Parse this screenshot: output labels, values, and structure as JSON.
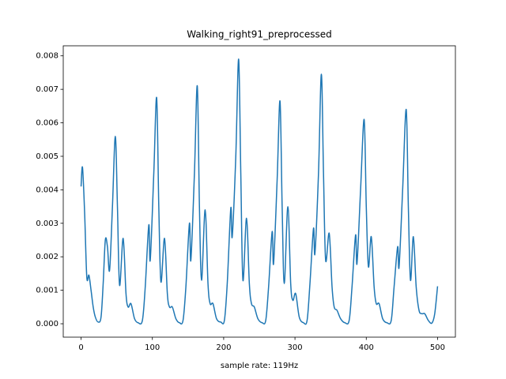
{
  "chart_data": {
    "type": "line",
    "title": "Walking_right91_preprocessed",
    "x_label": "sample rate: 119Hz",
    "xlim": [
      -25,
      525
    ],
    "ylim": [
      -0.0004,
      0.0083
    ],
    "xticks": [
      0,
      100,
      200,
      300,
      400,
      500
    ],
    "yticks": [
      {
        "value": 0,
        "label": "0.000"
      },
      {
        "value": 0.001,
        "label": "0.001"
      },
      {
        "value": 0.002,
        "label": "0.002"
      },
      {
        "value": 0.003,
        "label": "0.003"
      },
      {
        "value": 0.004,
        "label": "0.004"
      },
      {
        "value": 0.005,
        "label": "0.005"
      },
      {
        "value": 0.006,
        "label": "0.006"
      },
      {
        "value": 0.007,
        "label": "0.007"
      },
      {
        "value": 0.008,
        "label": "0.008"
      }
    ],
    "grid": false,
    "color": "#1f77b4",
    "x": [
      0,
      2,
      5,
      8,
      11,
      14,
      17,
      20,
      24,
      28,
      31,
      34,
      37,
      40,
      44,
      48,
      51,
      54,
      59,
      63,
      66,
      70,
      75,
      80,
      86,
      90,
      95,
      97,
      102,
      106,
      109,
      112,
      117,
      121,
      124,
      128,
      133,
      138,
      143,
      147,
      152,
      154,
      159,
      163,
      166,
      169,
      174,
      178,
      181,
      185,
      190,
      196,
      201,
      205,
      210,
      212,
      217,
      221,
      224,
      227,
      232,
      236,
      239,
      243,
      248,
      254,
      259,
      263,
      268,
      270,
      275,
      279,
      282,
      285,
      290,
      294,
      297,
      301,
      306,
      312,
      317,
      321,
      326,
      328,
      333,
      337,
      340,
      343,
      348,
      352,
      355,
      359,
      364,
      370,
      376,
      380,
      385,
      387,
      392,
      397,
      400,
      403,
      407,
      411,
      414,
      418,
      423,
      429,
      435,
      439,
      444,
      446,
      451,
      456,
      459,
      462,
      466,
      470,
      474,
      478,
      482,
      487,
      492,
      496,
      500
    ],
    "values": [
      0.0041,
      0.00467,
      0.0033,
      0.0014,
      0.00145,
      0.001,
      0.0005,
      0.0002,
      5e-05,
      0.0002,
      0.0012,
      0.0025,
      0.0023,
      0.0016,
      0.0035,
      0.0056,
      0.0035,
      0.00115,
      0.00255,
      0.0009,
      0.0005,
      0.0006,
      0.00015,
      3e-05,
      0.0001,
      0.0011,
      0.00295,
      0.0019,
      0.0045,
      0.00675,
      0.0035,
      0.00125,
      0.00255,
      0.0009,
      0.0005,
      0.0005,
      0.00015,
      3e-05,
      0.0001,
      0.0011,
      0.003,
      0.0019,
      0.0045,
      0.0071,
      0.0035,
      0.0013,
      0.0034,
      0.0012,
      0.0006,
      0.0006,
      0.00015,
      5e-05,
      0.0001,
      0.0012,
      0.00345,
      0.0026,
      0.005,
      0.0079,
      0.0045,
      0.0013,
      0.00315,
      0.0012,
      0.0006,
      0.0005,
      0.00015,
      3e-05,
      0.0001,
      0.0011,
      0.00275,
      0.0018,
      0.0043,
      0.00665,
      0.0035,
      0.0012,
      0.0035,
      0.0012,
      0.0007,
      0.0009,
      0.0002,
      3e-05,
      0.0001,
      0.0012,
      0.00285,
      0.0021,
      0.0045,
      0.00745,
      0.0045,
      0.0019,
      0.0027,
      0.0011,
      0.0005,
      0.0004,
      0.00015,
      3e-05,
      0.0001,
      0.0011,
      0.00265,
      0.0018,
      0.004,
      0.0061,
      0.0035,
      0.0017,
      0.0026,
      0.0011,
      0.0006,
      0.0006,
      0.00015,
      3e-05,
      0.0001,
      0.0011,
      0.0023,
      0.0017,
      0.004,
      0.0064,
      0.0035,
      0.0013,
      0.0026,
      0.0011,
      0.0004,
      0.0003,
      0.0003,
      0.0001,
      2e-05,
      0.0003,
      0.00112
    ]
  }
}
